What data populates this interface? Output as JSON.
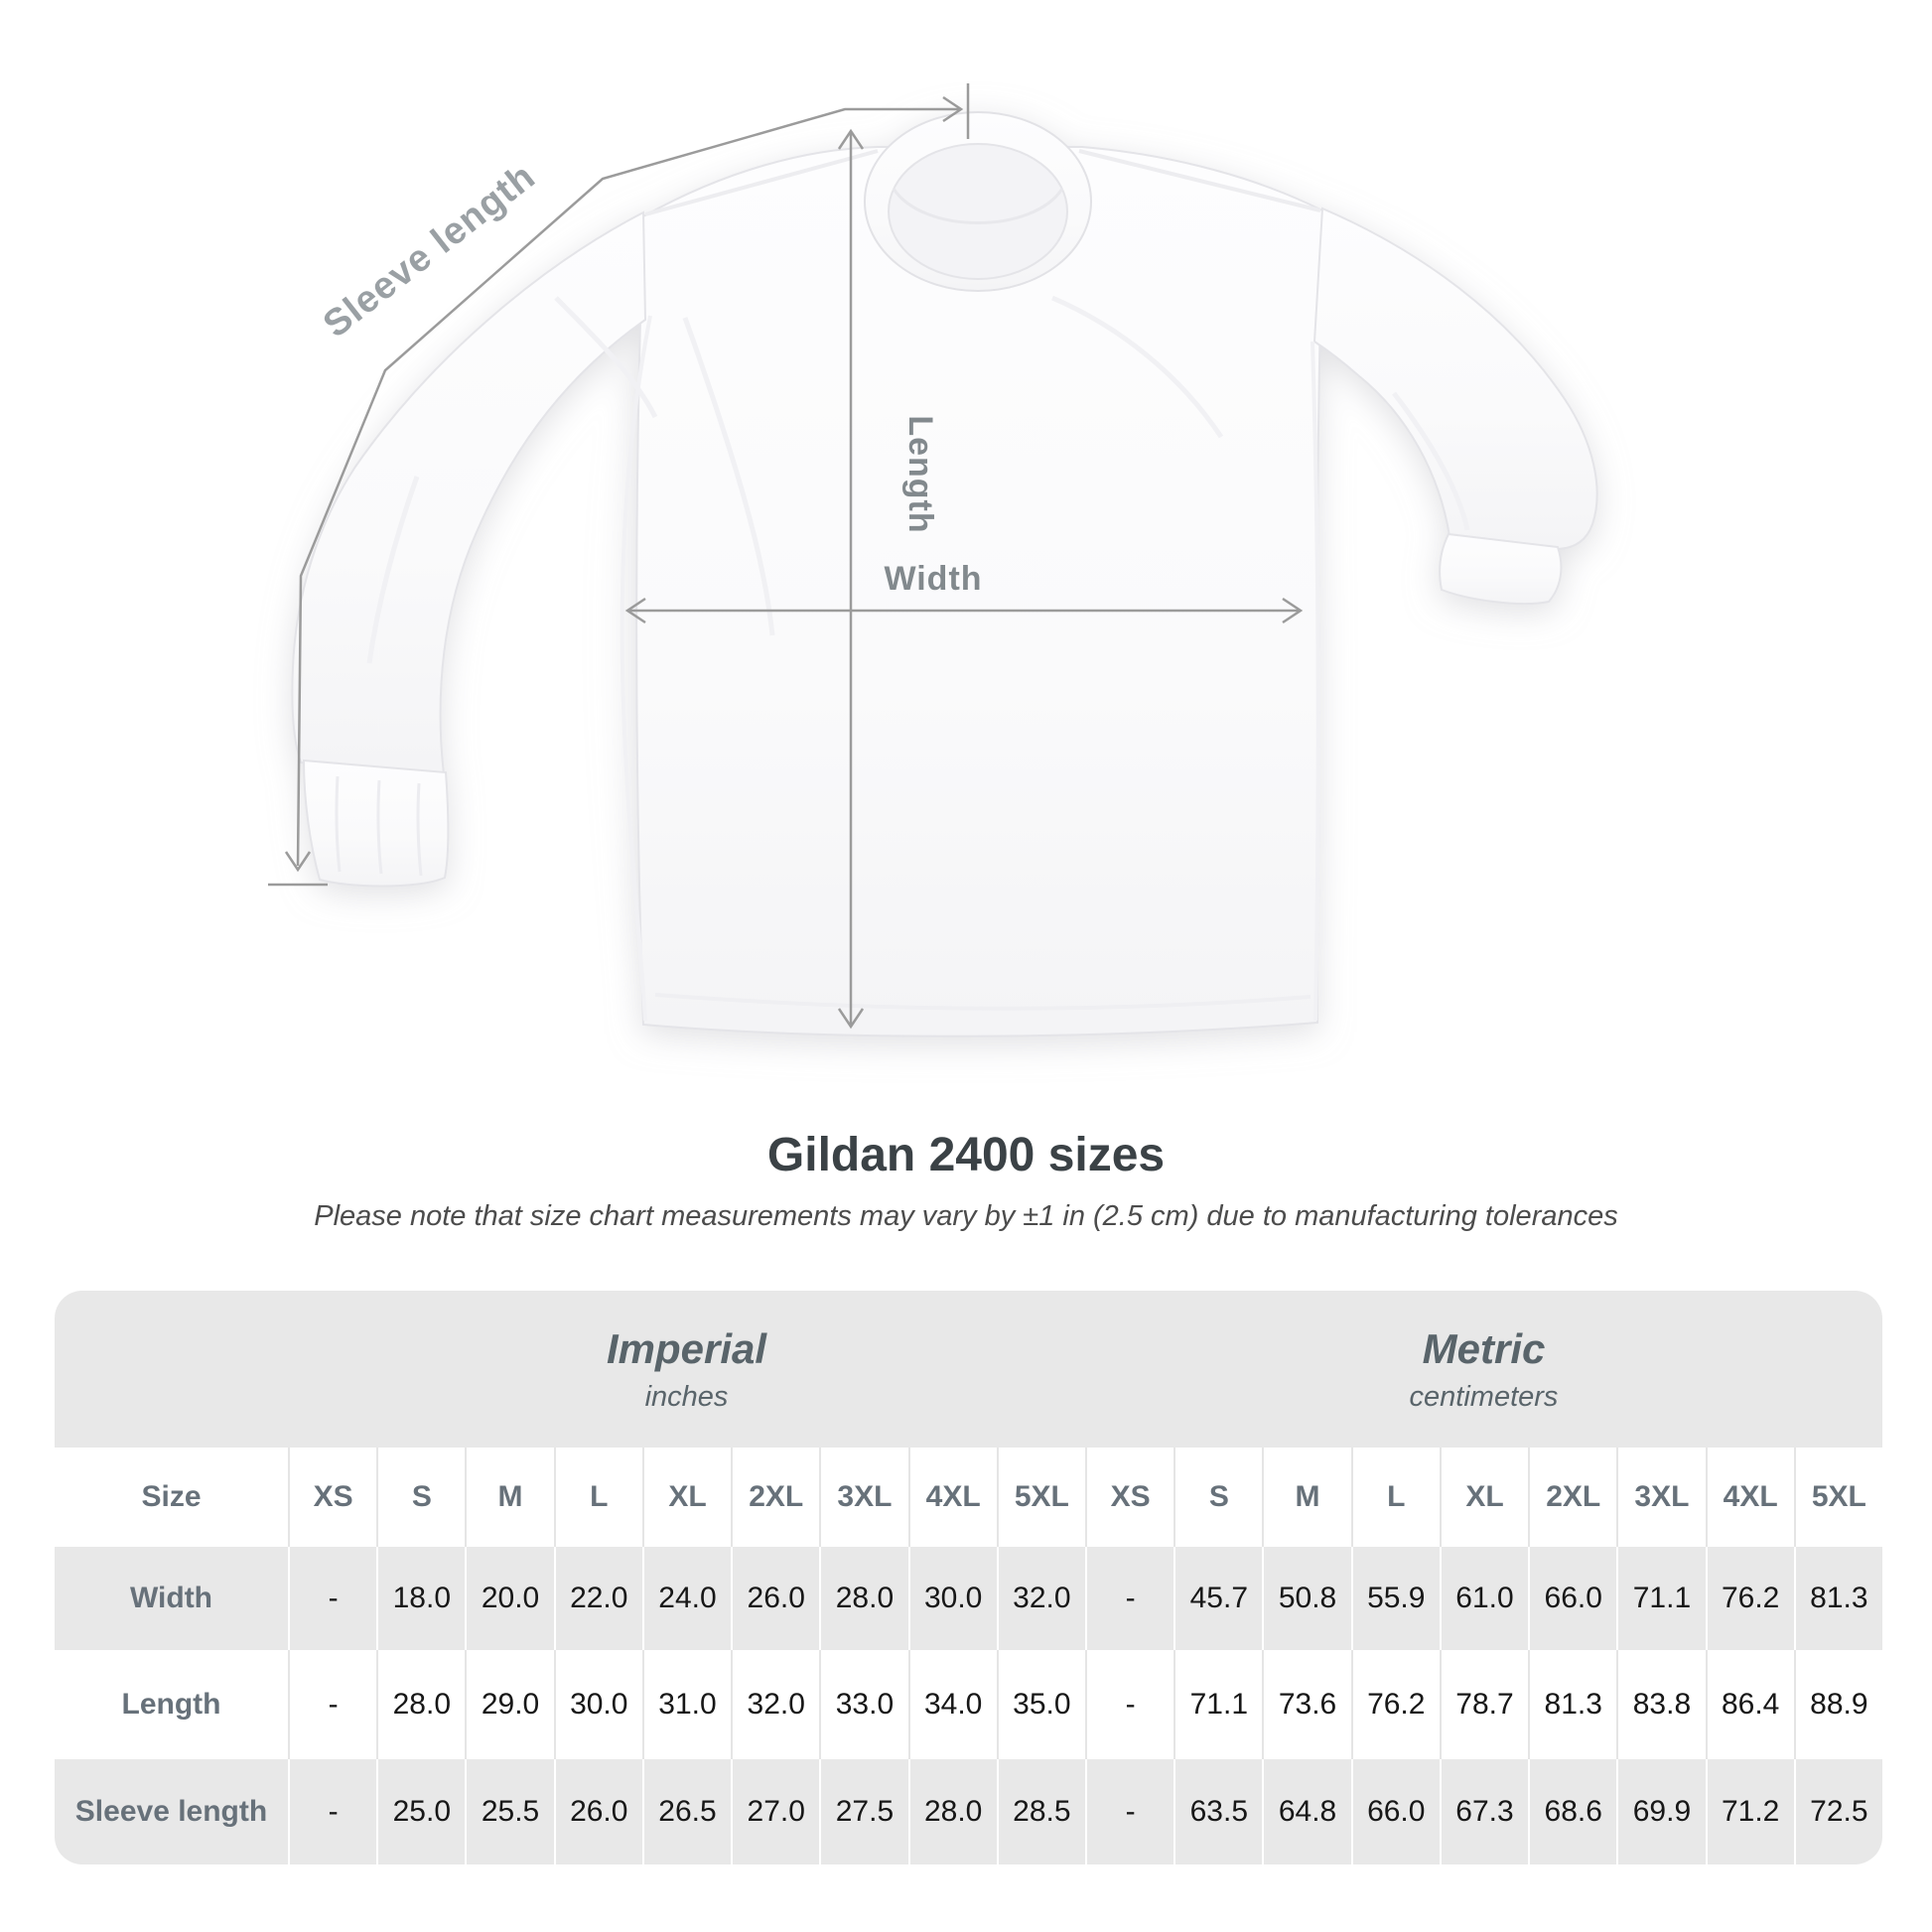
{
  "diagram": {
    "labels": {
      "sleeve": "Sleeve length",
      "length": "Length",
      "width": "Width"
    }
  },
  "chart_data": {
    "type": "table",
    "title": "Gildan 2400 sizes",
    "note": "Please note that size chart measurements may vary by ±1 in (2.5 cm) due to manufacturing tolerances",
    "corner_header": "Size",
    "column_groups": [
      {
        "label": "Imperial",
        "sublabel": "inches"
      },
      {
        "label": "Metric",
        "sublabel": "centimeters"
      }
    ],
    "size_columns": [
      "XS",
      "S",
      "M",
      "L",
      "XL",
      "2XL",
      "3XL",
      "4XL",
      "5XL"
    ],
    "rows": [
      {
        "label": "Width",
        "imperial": [
          "-",
          "18.0",
          "20.0",
          "22.0",
          "24.0",
          "26.0",
          "28.0",
          "30.0",
          "32.0"
        ],
        "metric": [
          "-",
          "45.7",
          "50.8",
          "55.9",
          "61.0",
          "66.0",
          "71.1",
          "76.2",
          "81.3"
        ]
      },
      {
        "label": "Length",
        "imperial": [
          "-",
          "28.0",
          "29.0",
          "30.0",
          "31.0",
          "32.0",
          "33.0",
          "34.0",
          "35.0"
        ],
        "metric": [
          "-",
          "71.1",
          "73.6",
          "76.2",
          "78.7",
          "81.3",
          "83.8",
          "86.4",
          "88.9"
        ]
      },
      {
        "label": "Sleeve length",
        "imperial": [
          "-",
          "25.0",
          "25.5",
          "26.0",
          "26.5",
          "27.0",
          "27.5",
          "28.0",
          "28.5"
        ],
        "metric": [
          "-",
          "63.5",
          "64.8",
          "66.0",
          "67.3",
          "68.6",
          "69.9",
          "71.2",
          "72.5"
        ]
      }
    ],
    "measurement_annotations": [
      "Sleeve length",
      "Length",
      "Width"
    ]
  }
}
